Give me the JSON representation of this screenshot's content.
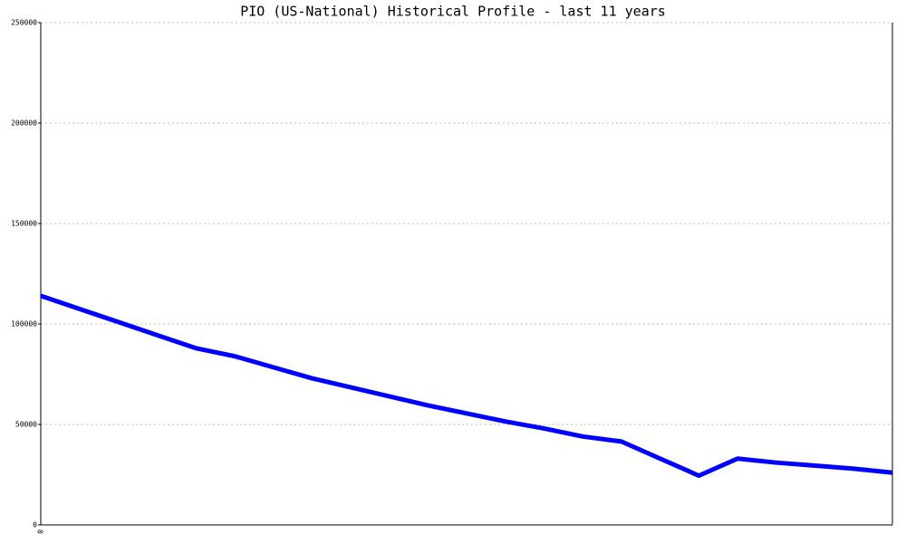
{
  "chart_data": {
    "type": "line",
    "title": "PIO (US-National) Historical Profile - last 11 years",
    "categories": [
      "0",
      null,
      null,
      null,
      null,
      null,
      null,
      null,
      null,
      null,
      null,
      null,
      null,
      null,
      null,
      null,
      null,
      null,
      null,
      null,
      null,
      null,
      null
    ],
    "values": [
      114000,
      107500,
      101000,
      94500,
      88000,
      84000,
      78500,
      73000,
      68500,
      64000,
      59500,
      55500,
      51500,
      48000,
      44000,
      41500,
      33000,
      24500,
      33000,
      31000,
      29500,
      28000,
      26000
    ],
    "color": "#0000ff",
    "ylim": [
      0,
      250000
    ],
    "yticks": [
      0,
      50000,
      100000,
      150000,
      200000,
      250000
    ],
    "grid": true
  }
}
